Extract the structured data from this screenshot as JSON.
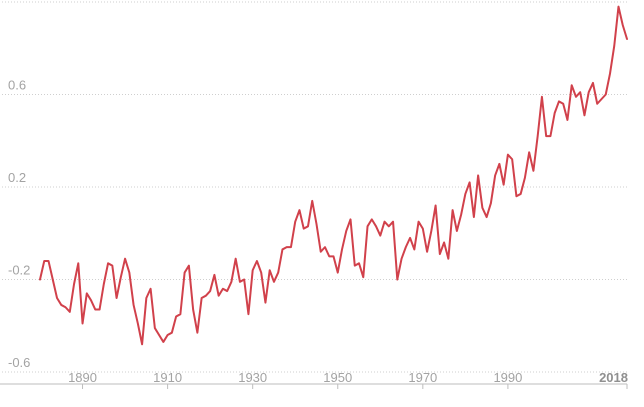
{
  "chart_data": {
    "type": "line",
    "title": "",
    "xlabel": "",
    "ylabel": "",
    "xlim": [
      1880,
      2018
    ],
    "ylim": [
      -0.6,
      1.0
    ],
    "grid": true,
    "y_ticks": [
      {
        "value": -0.6,
        "label": "-0.6"
      },
      {
        "value": -0.2,
        "label": "-0.2"
      },
      {
        "value": 0.2,
        "label": "0.2"
      },
      {
        "value": 0.6,
        "label": "0.6"
      }
    ],
    "x_ticks": [
      {
        "value": 1890,
        "label": "1890",
        "bold": false
      },
      {
        "value": 1910,
        "label": "1910",
        "bold": false
      },
      {
        "value": 1930,
        "label": "1930",
        "bold": false
      },
      {
        "value": 1950,
        "label": "1950",
        "bold": false
      },
      {
        "value": 1970,
        "label": "1970",
        "bold": false
      },
      {
        "value": 1990,
        "label": "1990",
        "bold": false
      },
      {
        "value": 2018,
        "label": "2018",
        "bold": true
      }
    ],
    "series": [
      {
        "color": "#d1414b",
        "x": [
          1880,
          1881,
          1882,
          1883,
          1884,
          1885,
          1886,
          1887,
          1888,
          1889,
          1890,
          1891,
          1892,
          1893,
          1894,
          1895,
          1896,
          1897,
          1898,
          1899,
          1900,
          1901,
          1902,
          1903,
          1904,
          1905,
          1906,
          1907,
          1908,
          1909,
          1910,
          1911,
          1912,
          1913,
          1914,
          1915,
          1916,
          1917,
          1918,
          1919,
          1920,
          1921,
          1922,
          1923,
          1924,
          1925,
          1926,
          1927,
          1928,
          1929,
          1930,
          1931,
          1932,
          1933,
          1934,
          1935,
          1936,
          1937,
          1938,
          1939,
          1940,
          1941,
          1942,
          1943,
          1944,
          1945,
          1946,
          1947,
          1948,
          1949,
          1950,
          1951,
          1952,
          1953,
          1954,
          1955,
          1956,
          1957,
          1958,
          1959,
          1960,
          1961,
          1962,
          1963,
          1964,
          1965,
          1966,
          1967,
          1968,
          1969,
          1970,
          1971,
          1972,
          1973,
          1974,
          1975,
          1976,
          1977,
          1978,
          1979,
          1980,
          1981,
          1982,
          1983,
          1984,
          1985,
          1986,
          1987,
          1988,
          1989,
          1990,
          1991,
          1992,
          1993,
          1994,
          1995,
          1996,
          1997,
          1998,
          1999,
          2000,
          2001,
          2002,
          2003,
          2004,
          2005,
          2006,
          2007,
          2008,
          2009,
          2010,
          2011,
          2012,
          2013,
          2014,
          2015,
          2016,
          2017,
          2018
        ],
        "values": [
          -0.2,
          -0.12,
          -0.12,
          -0.2,
          -0.28,
          -0.31,
          -0.32,
          -0.34,
          -0.22,
          -0.13,
          -0.39,
          -0.26,
          -0.29,
          -0.33,
          -0.33,
          -0.22,
          -0.13,
          -0.14,
          -0.28,
          -0.19,
          -0.11,
          -0.17,
          -0.31,
          -0.39,
          -0.48,
          -0.28,
          -0.24,
          -0.41,
          -0.44,
          -0.47,
          -0.44,
          -0.43,
          -0.36,
          -0.35,
          -0.17,
          -0.14,
          -0.33,
          -0.43,
          -0.28,
          -0.27,
          -0.25,
          -0.18,
          -0.27,
          -0.24,
          -0.25,
          -0.21,
          -0.11,
          -0.21,
          -0.2,
          -0.35,
          -0.16,
          -0.12,
          -0.17,
          -0.3,
          -0.16,
          -0.21,
          -0.17,
          -0.07,
          -0.06,
          -0.06,
          0.05,
          0.1,
          0.02,
          0.03,
          0.14,
          0.04,
          -0.08,
          -0.06,
          -0.1,
          -0.1,
          -0.17,
          -0.07,
          0.01,
          0.06,
          -0.14,
          -0.13,
          -0.19,
          0.03,
          0.06,
          0.03,
          -0.01,
          0.05,
          0.03,
          0.05,
          -0.2,
          -0.11,
          -0.06,
          -0.02,
          -0.07,
          0.05,
          0.02,
          -0.08,
          0.01,
          0.12,
          -0.09,
          -0.04,
          -0.11,
          0.1,
          0.01,
          0.08,
          0.17,
          0.22,
          0.07,
          0.25,
          0.11,
          0.07,
          0.13,
          0.25,
          0.3,
          0.21,
          0.34,
          0.32,
          0.16,
          0.17,
          0.24,
          0.35,
          0.27,
          0.42,
          0.59,
          0.42,
          0.42,
          0.52,
          0.57,
          0.56,
          0.49,
          0.64,
          0.59,
          0.61,
          0.51,
          0.61,
          0.65,
          0.56,
          0.58,
          0.6,
          0.69,
          0.81,
          0.98,
          0.9,
          0.84
        ]
      }
    ]
  }
}
